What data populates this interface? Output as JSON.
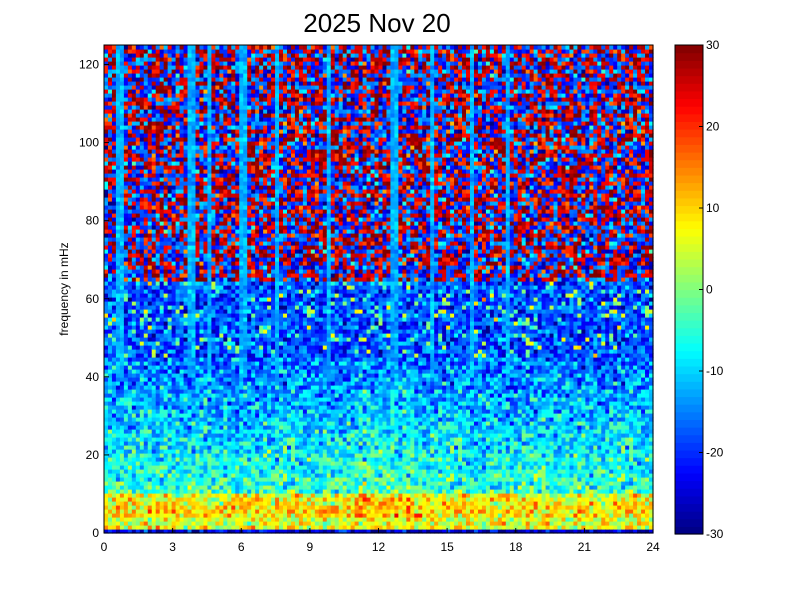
{
  "chart_data": {
    "type": "heatmap",
    "title": "2025 Nov 20",
    "xlabel": "",
    "ylabel": "frequency in mHz",
    "xlim": [
      0,
      24
    ],
    "ylim": [
      0,
      125
    ],
    "x_ticks": [
      "0",
      "3",
      "6",
      "9",
      "12",
      "15",
      "18",
      "21",
      "24"
    ],
    "y_ticks": [
      "0",
      "20",
      "40",
      "60",
      "80",
      "100",
      "120"
    ],
    "colorbar": {
      "colormap": "jet",
      "range": [
        -30,
        30
      ],
      "ticks": [
        "-30",
        "-20",
        "-10",
        "0",
        "10",
        "20",
        "30"
      ]
    },
    "description_values": {
      "low_freq_band_mHz": [
        0,
        10
      ],
      "low_freq_level_dB": 10,
      "mid_band_mHz": [
        10,
        45
      ],
      "mid_band_level_dB": -10,
      "high_band_level_dB": 25,
      "vertical_streaks_hours": [
        0.7,
        3.8,
        4.6,
        6.1,
        7.6,
        9.8,
        12.7,
        14.3,
        16.1,
        17.6
      ]
    }
  }
}
